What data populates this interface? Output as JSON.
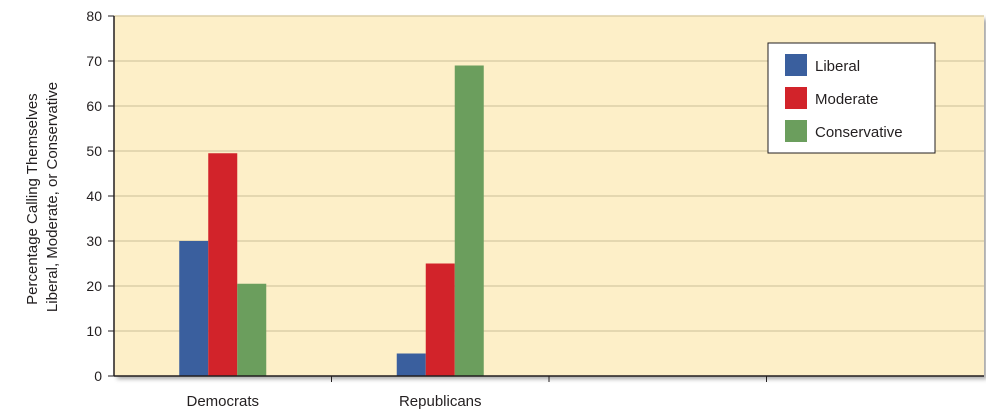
{
  "chart_data": {
    "type": "bar",
    "title": "",
    "xlabel": "",
    "ylabel_lines": [
      "Percentage Calling Themselves",
      "Liberal, Moderate, or Conservative"
    ],
    "categories": [
      "Democrats",
      "Republicans",
      "",
      ""
    ],
    "series": [
      {
        "name": "Liberal",
        "color": "#3a5f9e",
        "values": [
          30,
          5,
          null,
          null
        ]
      },
      {
        "name": "Moderate",
        "color": "#d2232a",
        "values": [
          49.5,
          25,
          null,
          null
        ]
      },
      {
        "name": "Conservative",
        "color": "#6b9e5d",
        "values": [
          20.5,
          69,
          null,
          null
        ]
      }
    ],
    "ylim": [
      0,
      80
    ],
    "yticks": [
      0,
      10,
      20,
      30,
      40,
      50,
      60,
      70,
      80
    ],
    "grid": true,
    "legend_position": "top-right",
    "background_color": "#fdefc8",
    "gridline_color": "#dccfa8"
  }
}
